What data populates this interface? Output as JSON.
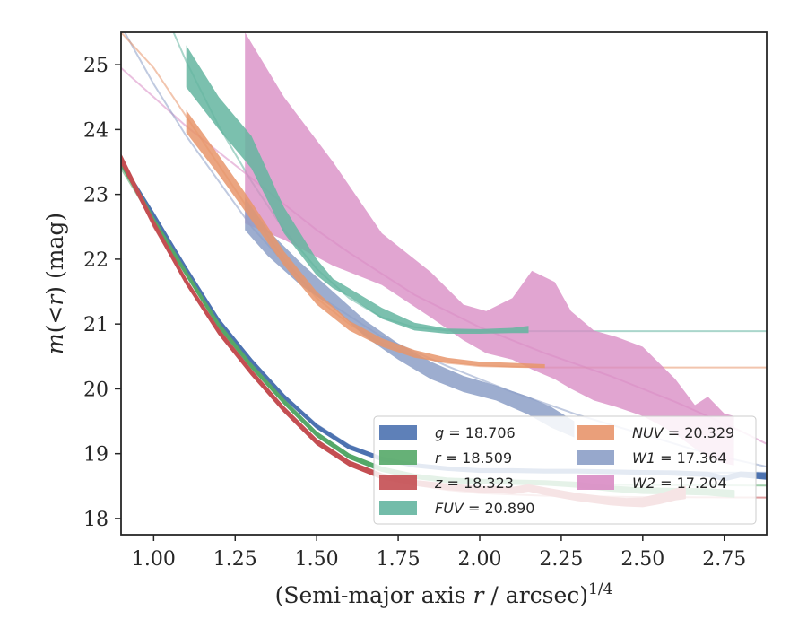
{
  "chart_data": {
    "type": "line",
    "xlabel": "(Semi-major axis r / arcsec)^{1/4}",
    "ylabel": "m(<r) (mag)",
    "xlim": [
      0.9,
      2.88
    ],
    "ylim": [
      25.5,
      17.75
    ],
    "y_inverted": true,
    "xticks": [
      "1.00",
      "1.25",
      "1.50",
      "1.75",
      "2.00",
      "2.25",
      "2.50",
      "2.75"
    ],
    "yticks": [
      "18",
      "19",
      "20",
      "21",
      "22",
      "23",
      "24",
      "25"
    ],
    "legend_position": "lower-right",
    "grid": false,
    "series": [
      {
        "name": "g = 18.706",
        "band": "g",
        "value": "18.706",
        "color": "#4c72b0",
        "model_x": [
          0.9,
          1.0,
          1.1,
          1.2,
          1.3,
          1.4,
          1.5,
          1.6,
          1.7,
          1.8,
          1.9,
          2.0,
          2.2,
          2.5,
          2.88
        ],
        "model_y": [
          23.5,
          22.7,
          21.85,
          21.05,
          20.45,
          19.9,
          19.45,
          19.13,
          18.94,
          18.83,
          18.77,
          18.74,
          18.72,
          18.71,
          18.706
        ],
        "band_x": [
          0.9,
          1.0,
          1.1,
          1.2,
          1.3,
          1.4,
          1.5,
          1.6,
          1.7,
          1.8,
          1.9,
          2.0,
          2.1,
          2.2,
          2.3,
          2.4,
          2.5,
          2.6,
          2.7,
          2.75,
          2.8,
          2.88
        ],
        "band_center": [
          23.48,
          22.68,
          21.85,
          21.05,
          20.43,
          19.88,
          19.42,
          19.1,
          18.92,
          18.82,
          18.77,
          18.74,
          18.74,
          18.73,
          18.73,
          18.72,
          18.71,
          18.7,
          18.68,
          18.62,
          18.68,
          18.65
        ],
        "band_width": [
          0.08,
          0.06,
          0.05,
          0.05,
          0.05,
          0.05,
          0.05,
          0.05,
          0.05,
          0.05,
          0.05,
          0.05,
          0.05,
          0.05,
          0.05,
          0.05,
          0.05,
          0.06,
          0.06,
          0.07,
          0.07,
          0.08
        ]
      },
      {
        "name": "r = 18.509",
        "band": "r",
        "value": "18.509",
        "color": "#55a868",
        "model_x": [
          0.9,
          1.0,
          1.1,
          1.2,
          1.3,
          1.4,
          1.5,
          1.6,
          1.7,
          1.8,
          1.9,
          2.0,
          2.2,
          2.5,
          2.88
        ],
        "model_y": [
          23.4,
          22.58,
          21.75,
          20.95,
          20.35,
          19.8,
          19.32,
          18.98,
          18.78,
          18.66,
          18.59,
          18.55,
          18.53,
          18.515,
          18.509
        ],
        "band_x": [
          0.9,
          1.0,
          1.1,
          1.2,
          1.3,
          1.4,
          1.5,
          1.6,
          1.7,
          1.8,
          1.9,
          2.0,
          2.1,
          2.2,
          2.3,
          2.4,
          2.5,
          2.6,
          2.7,
          2.78
        ],
        "band_center": [
          23.5,
          22.6,
          21.78,
          20.98,
          20.35,
          19.8,
          19.3,
          18.96,
          18.76,
          18.65,
          18.59,
          18.57,
          18.56,
          18.55,
          18.52,
          18.46,
          18.43,
          18.42,
          18.41,
          18.38
        ],
        "band_width": [
          0.1,
          0.07,
          0.06,
          0.06,
          0.06,
          0.06,
          0.06,
          0.06,
          0.06,
          0.06,
          0.06,
          0.06,
          0.06,
          0.06,
          0.07,
          0.07,
          0.08,
          0.08,
          0.09,
          0.1
        ]
      },
      {
        "name": "z = 18.323",
        "band": "z",
        "value": "18.323",
        "color": "#c44e52",
        "model_x": [
          0.9,
          1.0,
          1.1,
          1.2,
          1.3,
          1.4,
          1.5,
          1.6,
          1.7,
          1.8,
          1.9,
          2.0,
          2.2,
          2.5,
          2.88
        ],
        "model_y": [
          23.55,
          22.5,
          21.65,
          20.88,
          20.25,
          19.7,
          19.2,
          18.88,
          18.66,
          18.52,
          18.44,
          18.39,
          18.35,
          18.33,
          18.323
        ],
        "band_x": [
          0.9,
          1.0,
          1.1,
          1.2,
          1.3,
          1.4,
          1.5,
          1.6,
          1.7,
          1.8,
          1.9,
          2.0,
          2.05,
          2.1,
          2.15,
          2.2,
          2.3,
          2.4,
          2.45,
          2.5,
          2.55,
          2.6,
          2.63
        ],
        "band_center": [
          23.55,
          22.55,
          21.65,
          20.88,
          20.25,
          19.68,
          19.18,
          18.85,
          18.65,
          18.55,
          18.49,
          18.45,
          18.45,
          18.43,
          18.47,
          18.42,
          18.33,
          18.27,
          18.25,
          18.25,
          18.3,
          18.37,
          18.4
        ],
        "band_width": [
          0.12,
          0.08,
          0.07,
          0.07,
          0.07,
          0.07,
          0.07,
          0.07,
          0.07,
          0.07,
          0.08,
          0.08,
          0.08,
          0.09,
          0.09,
          0.1,
          0.1,
          0.11,
          0.11,
          0.13,
          0.14,
          0.16,
          0.18
        ]
      },
      {
        "name": "FUV = 20.890",
        "band": "FUV",
        "value": "20.890",
        "color": "#64b5a0",
        "model_x": [
          0.9,
          1.0,
          1.1,
          1.2,
          1.3,
          1.4,
          1.5,
          1.6,
          1.7,
          1.8,
          1.9,
          2.0,
          2.2,
          2.5,
          2.88
        ],
        "model_y": [
          27.2,
          26.2,
          25.05,
          24.05,
          23.2,
          22.45,
          21.85,
          21.4,
          21.1,
          20.95,
          20.9,
          20.89,
          20.89,
          20.89,
          20.89
        ],
        "band_x": [
          1.1,
          1.2,
          1.3,
          1.4,
          1.5,
          1.55,
          1.6,
          1.7,
          1.8,
          1.9,
          2.0,
          2.1,
          2.15
        ],
        "band_lower": [
          25.3,
          24.5,
          23.9,
          22.8,
          22.0,
          21.7,
          21.55,
          21.25,
          21.02,
          20.93,
          20.92,
          20.94,
          20.97
        ],
        "band_upper": [
          24.65,
          24.0,
          23.4,
          22.4,
          21.75,
          21.55,
          21.42,
          21.08,
          20.9,
          20.85,
          20.85,
          20.86,
          20.86
        ]
      },
      {
        "name": "NUV = 20.329",
        "band": "NUV",
        "value": "20.329",
        "color": "#e8956b",
        "model_x": [
          0.9,
          1.0,
          1.1,
          1.2,
          1.3,
          1.4,
          1.5,
          1.6,
          1.7,
          1.8,
          1.9,
          2.0,
          2.2,
          2.5,
          2.88
        ],
        "model_y": [
          25.5,
          24.95,
          24.2,
          23.45,
          22.7,
          22.0,
          21.4,
          21.0,
          20.7,
          20.5,
          20.4,
          20.35,
          20.33,
          20.33,
          20.329
        ],
        "band_x": [
          1.1,
          1.2,
          1.3,
          1.4,
          1.5,
          1.6,
          1.7,
          1.8,
          1.9,
          2.0,
          2.1,
          2.2
        ],
        "band_lower": [
          24.3,
          23.6,
          22.88,
          22.12,
          21.5,
          21.05,
          20.78,
          20.6,
          20.48,
          20.42,
          20.4,
          20.38
        ],
        "band_upper": [
          23.95,
          23.3,
          22.6,
          21.9,
          21.3,
          20.9,
          20.65,
          20.48,
          20.4,
          20.35,
          20.33,
          20.32
        ]
      },
      {
        "name": "W1 = 17.364",
        "band": "W1",
        "value": "17.364",
        "color": "#8c9fc7",
        "model_x": [
          0.9,
          1.0,
          1.1,
          1.2,
          1.3,
          1.4,
          1.5,
          1.7,
          1.9,
          2.1,
          2.3,
          2.5,
          2.7,
          2.88
        ],
        "model_y": [
          25.6,
          24.7,
          23.9,
          23.2,
          22.5,
          21.95,
          21.45,
          20.8,
          20.35,
          19.95,
          19.6,
          19.3,
          19.0,
          18.8
        ],
        "band_x": [
          1.28,
          1.35,
          1.45,
          1.55,
          1.65,
          1.75,
          1.85,
          1.95,
          2.05,
          2.15,
          2.22,
          2.29
        ],
        "band_lower": [
          22.95,
          22.45,
          21.95,
          21.5,
          21.05,
          20.7,
          20.42,
          20.2,
          20.05,
          19.88,
          19.72,
          19.5
        ],
        "band_upper": [
          22.45,
          22.05,
          21.6,
          21.25,
          20.8,
          20.45,
          20.15,
          19.95,
          19.82,
          19.6,
          19.4,
          19.25
        ]
      },
      {
        "name": "W2 = 17.204",
        "band": "W2",
        "value": "17.204",
        "color": "#d98cc4",
        "model_x": [
          0.9,
          1.0,
          1.1,
          1.2,
          1.3,
          1.4,
          1.5,
          1.6,
          1.8,
          2.0,
          2.2,
          2.4,
          2.6,
          2.8,
          2.88
        ],
        "model_y": [
          24.95,
          24.5,
          24.05,
          23.65,
          23.25,
          22.85,
          22.45,
          22.1,
          21.45,
          20.95,
          20.55,
          20.2,
          19.8,
          19.35,
          19.15
        ],
        "band_x": [
          1.28,
          1.4,
          1.55,
          1.7,
          1.85,
          1.95,
          2.02,
          2.1,
          2.16,
          2.23,
          2.28,
          2.35,
          2.42,
          2.5,
          2.56,
          2.6,
          2.66,
          2.7,
          2.75,
          2.78
        ],
        "band_lower": [
          25.5,
          24.5,
          23.5,
          22.4,
          21.8,
          21.3,
          21.2,
          21.4,
          21.82,
          21.65,
          21.2,
          20.9,
          20.8,
          20.65,
          20.35,
          20.15,
          19.75,
          19.88,
          19.62,
          19.58
        ],
        "band_upper": [
          22.55,
          22.3,
          21.9,
          21.6,
          21.1,
          20.75,
          20.55,
          20.45,
          20.3,
          20.15,
          20.0,
          19.82,
          19.72,
          19.58,
          19.42,
          19.3,
          19.08,
          18.95,
          18.85,
          18.82
        ]
      }
    ]
  }
}
